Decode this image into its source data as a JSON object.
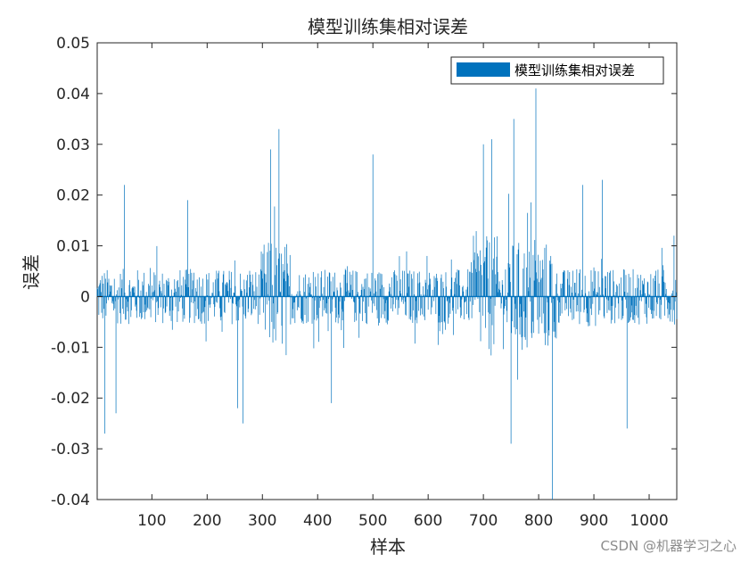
{
  "watermark": "CSDN @机器学习之心",
  "colors": {
    "bar": "#0072BD",
    "axis": "#262626"
  },
  "chart_data": {
    "type": "bar",
    "title": "模型训练集相对误差",
    "xlabel": "样本",
    "ylabel": "误差",
    "legend": {
      "entries": [
        "模型训练集相对误差"
      ],
      "position": "top-right"
    },
    "xlim": [
      1,
      1050
    ],
    "ylim": [
      -0.04,
      0.05
    ],
    "xticks": [
      100,
      200,
      300,
      400,
      500,
      600,
      700,
      800,
      900,
      1000
    ],
    "yticks": [
      -0.04,
      -0.03,
      -0.02,
      -0.01,
      0,
      0.01,
      0.02,
      0.03,
      0.04,
      0.05
    ],
    "ytick_labels": [
      "-0.04",
      "-0.03",
      "-0.02",
      "-0.01",
      "0",
      "0.01",
      "0.02",
      "0.03",
      "0.04",
      "0.05"
    ],
    "n_samples": 1050,
    "notable_points": [
      {
        "x": 15,
        "y": -0.027
      },
      {
        "x": 35,
        "y": -0.023
      },
      {
        "x": 50,
        "y": 0.022
      },
      {
        "x": 165,
        "y": 0.019
      },
      {
        "x": 255,
        "y": -0.022
      },
      {
        "x": 265,
        "y": -0.025
      },
      {
        "x": 315,
        "y": 0.029
      },
      {
        "x": 330,
        "y": 0.033
      },
      {
        "x": 425,
        "y": -0.021
      },
      {
        "x": 500,
        "y": 0.028
      },
      {
        "x": 700,
        "y": 0.03
      },
      {
        "x": 715,
        "y": 0.031
      },
      {
        "x": 750,
        "y": -0.029
      },
      {
        "x": 755,
        "y": 0.035
      },
      {
        "x": 795,
        "y": 0.041
      },
      {
        "x": 825,
        "y": -0.04
      },
      {
        "x": 880,
        "y": 0.022
      },
      {
        "x": 915,
        "y": 0.023
      },
      {
        "x": 960,
        "y": -0.026
      },
      {
        "x": 1045,
        "y": 0.012
      }
    ]
  }
}
